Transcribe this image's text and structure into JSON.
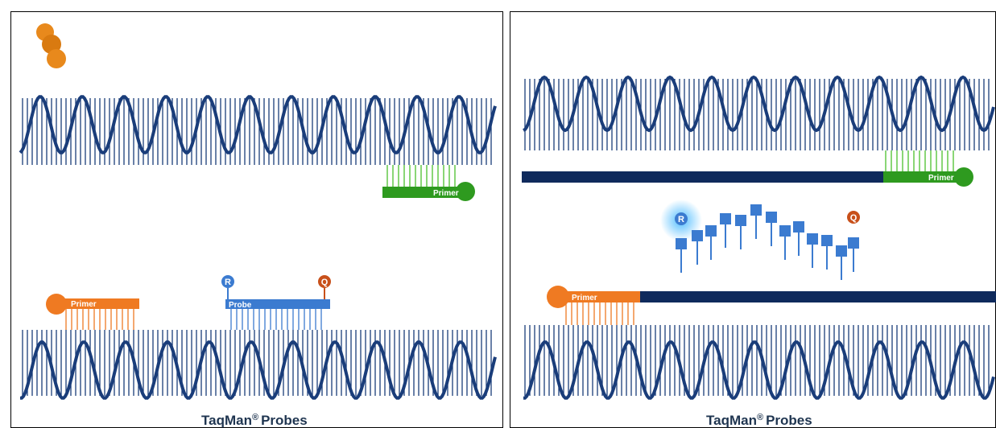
{
  "panels": [
    {
      "labels": {
        "top_primer": "Primer",
        "bottom_primer": "Primer",
        "probe": "Probe",
        "reporter": "R",
        "quencher": "Q"
      },
      "caption": {
        "name": "TaqMan",
        "mark": "®",
        "rest": "Probes"
      }
    },
    {
      "labels": {
        "top_primer": "Primer",
        "bottom_primer": "Primer",
        "reporter": "R",
        "quencher": "Q"
      },
      "caption": {
        "name": "TaqMan",
        "mark": "®",
        "rest": "Probes"
      }
    }
  ]
}
